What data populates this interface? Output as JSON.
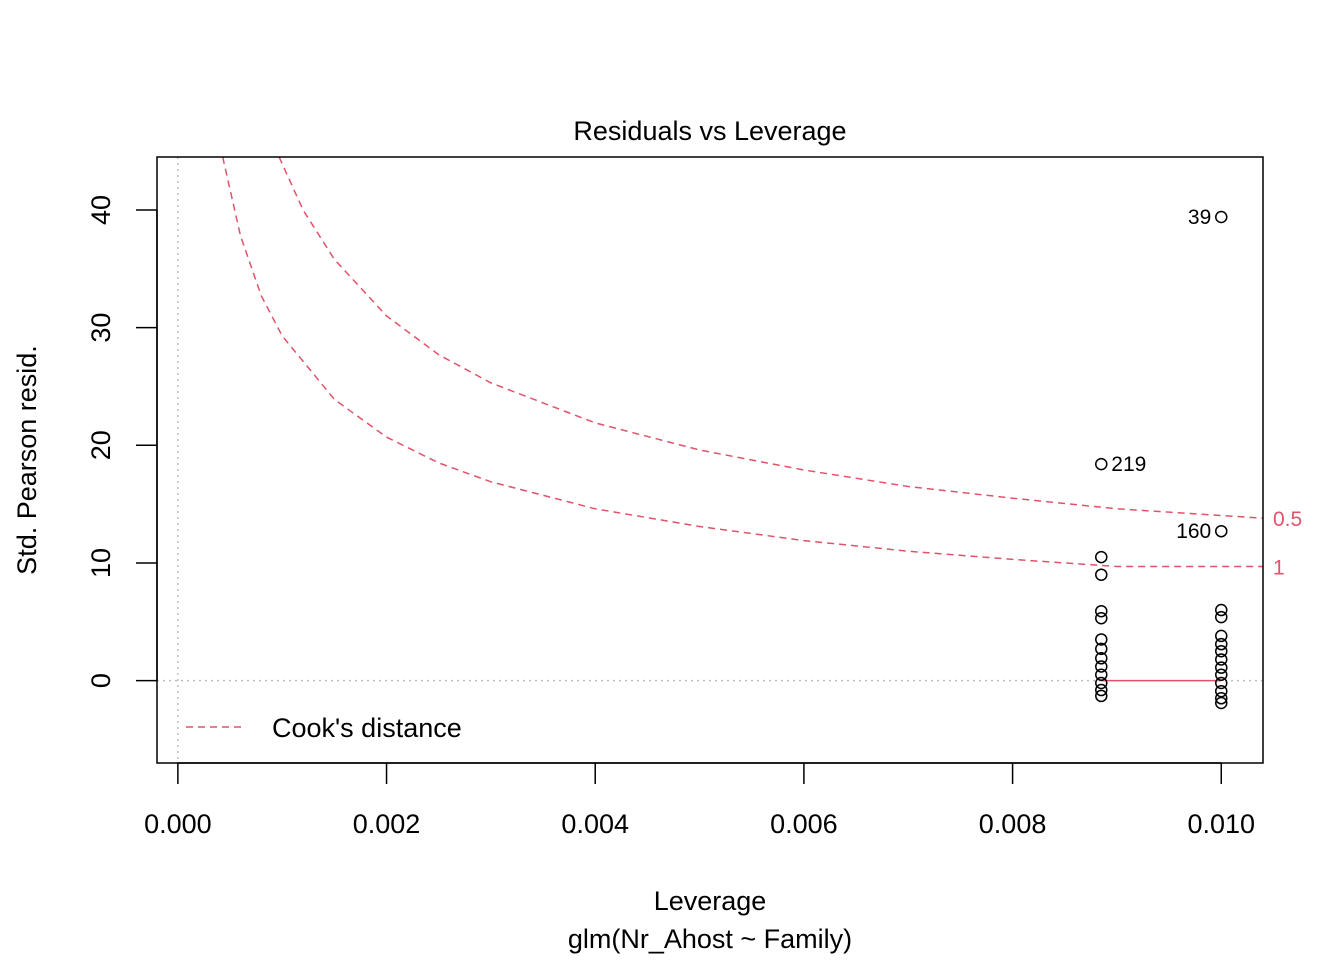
{
  "chart_data": {
    "type": "scatter",
    "title": "Residuals vs Leverage",
    "xlabel": "Leverage",
    "subtitle": "glm(Nr_Ahost ~ Family)",
    "ylabel": "Std. Pearson resid.",
    "xlim": [
      -0.0002,
      0.0104
    ],
    "ylim": [
      -7,
      44.5
    ],
    "x_ticks": [
      0,
      0.002,
      0.004,
      0.006,
      0.008,
      0.01
    ],
    "x_tick_labels": [
      "0.000",
      "0.002",
      "0.004",
      "0.006",
      "0.008",
      "0.010"
    ],
    "y_ticks": [
      0,
      10,
      20,
      30,
      40
    ],
    "y_tick_labels": [
      "0",
      "10",
      "20",
      "30",
      "40"
    ],
    "legend": {
      "label": "Cook's distance",
      "position": "bottom-left"
    },
    "colors": {
      "cooks": "#DF536B",
      "points": "#000000",
      "reference": "#BEBEBE",
      "smooth": "#DF536B"
    },
    "points": [
      {
        "x": 0.00885,
        "y": 18.4,
        "label": "219"
      },
      {
        "x": 0.00885,
        "y": 10.5
      },
      {
        "x": 0.00885,
        "y": 9.0
      },
      {
        "x": 0.00885,
        "y": 5.9
      },
      {
        "x": 0.00885,
        "y": 5.3
      },
      {
        "x": 0.00885,
        "y": 3.5
      },
      {
        "x": 0.00885,
        "y": 2.7
      },
      {
        "x": 0.00885,
        "y": 1.9
      },
      {
        "x": 0.00885,
        "y": 1.2
      },
      {
        "x": 0.00885,
        "y": 0.5
      },
      {
        "x": 0.00885,
        "y": -0.2
      },
      {
        "x": 0.00885,
        "y": -0.8
      },
      {
        "x": 0.00885,
        "y": -1.3
      },
      {
        "x": 0.01,
        "y": 39.4,
        "label": "39"
      },
      {
        "x": 0.01,
        "y": 12.7,
        "label": "160"
      },
      {
        "x": 0.01,
        "y": 6.0
      },
      {
        "x": 0.01,
        "y": 5.4
      },
      {
        "x": 0.01,
        "y": 3.8
      },
      {
        "x": 0.01,
        "y": 3.1
      },
      {
        "x": 0.01,
        "y": 2.5
      },
      {
        "x": 0.01,
        "y": 1.8
      },
      {
        "x": 0.01,
        "y": 1.1
      },
      {
        "x": 0.01,
        "y": 0.5
      },
      {
        "x": 0.01,
        "y": -0.2
      },
      {
        "x": 0.01,
        "y": -0.9
      },
      {
        "x": 0.01,
        "y": -1.5
      },
      {
        "x": 0.01,
        "y": -1.9
      }
    ],
    "smooth_line": {
      "x": [
        0.00885,
        0.01
      ],
      "y": [
        0,
        0
      ]
    },
    "cooks_contours": [
      {
        "label": "1",
        "level": 1,
        "x": [
          0.00043,
          0.0006,
          0.0008,
          0.001,
          0.0015,
          0.002,
          0.0025,
          0.003,
          0.004,
          0.005,
          0.006,
          0.007,
          0.008,
          0.009,
          0.0104
        ],
        "y": [
          44.5,
          37.8,
          32.7,
          29.3,
          23.9,
          20.7,
          18.5,
          16.9,
          14.6,
          13.1,
          11.9,
          11.0,
          10.3,
          9.7,
          9.7
        ]
      },
      {
        "label": "0.5",
        "level": 0.5,
        "x": [
          0.00097,
          0.0012,
          0.0015,
          0.002,
          0.0025,
          0.003,
          0.004,
          0.005,
          0.006,
          0.007,
          0.008,
          0.009,
          0.0104
        ],
        "y": [
          44.5,
          40.0,
          35.8,
          31.0,
          27.7,
          25.3,
          21.9,
          19.6,
          17.9,
          16.5,
          15.5,
          14.6,
          13.8
        ]
      }
    ]
  }
}
